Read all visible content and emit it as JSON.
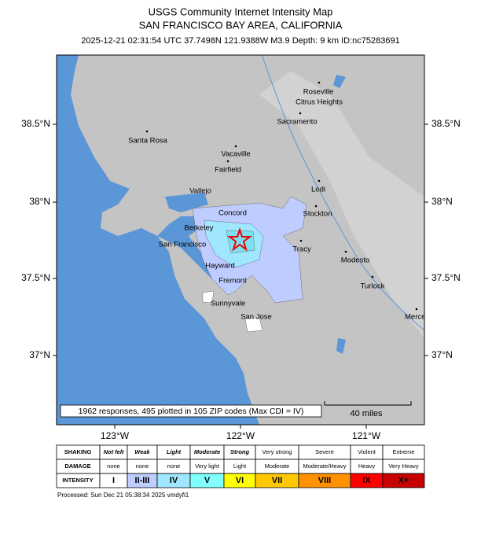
{
  "header": {
    "title": "USGS Community Internet Intensity Map",
    "region": "SAN FRANCISCO BAY AREA, CALIFORNIA",
    "event": "2025-12-21 02:31:54 UTC 37.7498N 121.9388W M3.9 Depth: 9 km ID:nc75283691"
  },
  "map": {
    "lat_labels": [
      "38.5°N",
      "38°N",
      "37.5°N",
      "37°N"
    ],
    "lon_labels": [
      "123°W",
      "122°W",
      "121°W"
    ],
    "cities": [
      "Roseville",
      "Citrus Heights",
      "Sacramento",
      "Santa Rosa",
      "Vacaville",
      "Fairfield",
      "Vallejo",
      "Lodi",
      "Concord",
      "Berkeley",
      "Stockton",
      "San Francisco",
      "Tracy",
      "Modesto",
      "Hayward",
      "Fremont",
      "Turlock",
      "Sunnyvale",
      "Merced",
      "San Jose"
    ],
    "responses": "1962 responses, 495 plotted in 105 ZIP codes (Max CDI = IV)",
    "scale": "40 miles"
  },
  "table": {
    "rows": [
      {
        "label": "SHAKING",
        "cells": [
          "Not felt",
          "Weak",
          "Light",
          "Moderate",
          "Strong",
          "Very strong",
          "Severe",
          "Violent",
          "Extreme"
        ]
      },
      {
        "label": "DAMAGE",
        "cells": [
          "none",
          "none",
          "none",
          "Very light",
          "Light",
          "Moderate",
          "Moderate/Heavy",
          "Heavy",
          "Very Heavy"
        ]
      },
      {
        "label": "INTENSITY",
        "cells": [
          "I",
          "II-III",
          "IV",
          "V",
          "VI",
          "VII",
          "VIII",
          "IX",
          "X+"
        ]
      }
    ]
  },
  "footer": "Processed: Sun Dec 21 05:38:34 2025 vmdyfi1"
}
